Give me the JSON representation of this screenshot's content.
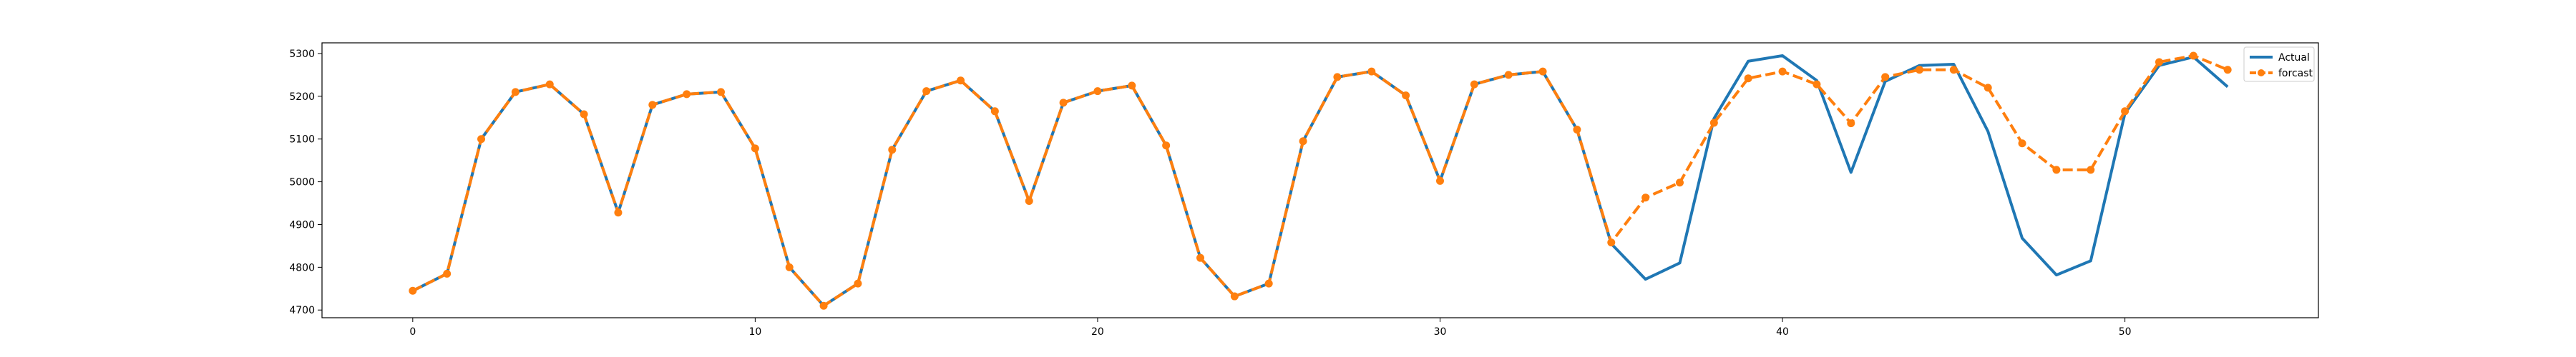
{
  "chart_data": {
    "type": "line",
    "x": [
      0,
      1,
      2,
      3,
      4,
      5,
      6,
      7,
      8,
      9,
      10,
      11,
      12,
      13,
      14,
      15,
      16,
      17,
      18,
      19,
      20,
      21,
      22,
      23,
      24,
      25,
      26,
      27,
      28,
      29,
      30,
      31,
      32,
      33,
      34,
      35,
      36,
      37,
      38,
      39,
      40,
      41,
      42,
      43,
      44,
      45,
      46,
      47,
      48,
      49,
      50,
      51,
      52,
      53
    ],
    "series": [
      {
        "name": "Actual",
        "color": "#1f77b4",
        "style": "solid",
        "values": [
          4745,
          4785,
          5100,
          5210,
          5228,
          5158,
          4928,
          5180,
          5205,
          5210,
          5078,
          4800,
          4710,
          4762,
          5075,
          5212,
          5237,
          5165,
          4955,
          5185,
          5212,
          5225,
          5085,
          4822,
          4732,
          4762,
          5095,
          5245,
          5258,
          5202,
          5002,
          5228,
          5250,
          5258,
          5122,
          4855,
          4772,
          4810,
          5148,
          5282,
          5295,
          5237,
          5022,
          5235,
          5272,
          5275,
          5118,
          4868,
          4782,
          4815,
          5160,
          5272,
          5292,
          5222
        ]
      },
      {
        "name": "forcast",
        "color": "#ff7f0e",
        "style": "dashed",
        "marker": "o",
        "values": [
          4745,
          4785,
          5100,
          5210,
          5228,
          5158,
          4928,
          5180,
          5205,
          5210,
          5078,
          4800,
          4710,
          4762,
          5075,
          5212,
          5237,
          5165,
          4955,
          5185,
          5212,
          5225,
          5085,
          4822,
          4732,
          4762,
          5095,
          5245,
          5258,
          5202,
          5002,
          5228,
          5250,
          5258,
          5122,
          4858,
          4963,
          4998,
          5138,
          5242,
          5258,
          5228,
          5137,
          5245,
          5262,
          5262,
          5220,
          5090,
          5028,
          5028,
          5165,
          5280,
          5295,
          5262
        ]
      }
    ],
    "x_ticks": [
      0,
      10,
      20,
      30,
      40,
      50
    ],
    "y_ticks": [
      4700,
      4800,
      4900,
      5000,
      5100,
      5200,
      5300
    ],
    "xlim": [
      -2.65,
      55.65
    ],
    "ylim": [
      4682,
      5325
    ],
    "grid": false,
    "legend_position": "top-right",
    "title": "",
    "xlabel": "",
    "ylabel": ""
  }
}
